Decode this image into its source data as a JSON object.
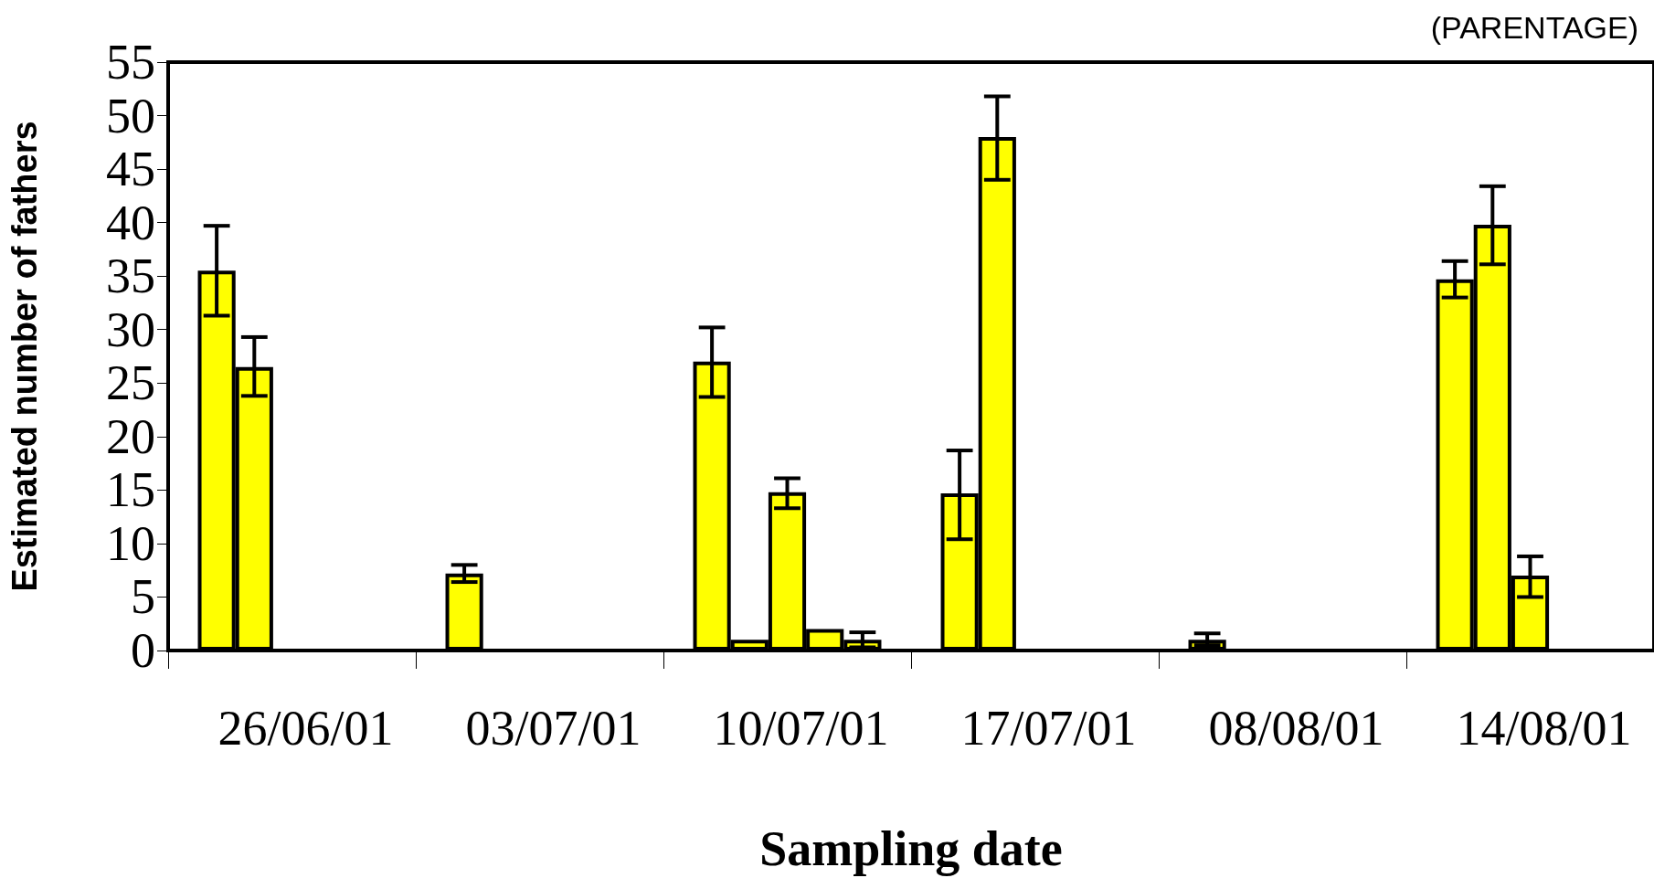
{
  "chart_data": {
    "type": "bar",
    "title": "(PARENTAGE)",
    "xlabel": "Sampling date",
    "ylabel": "Estimated number of fathers",
    "categories": [
      "26/06/01",
      "03/07/01",
      "10/07/01",
      "17/07/01",
      "08/08/01",
      "14/08/01"
    ],
    "series": [
      {
        "color": "#ffff00",
        "values": [
          35.5,
          7.2,
          27,
          14.7,
          1,
          34.7
        ],
        "errors": [
          [
            31.3,
            39.7
          ],
          [
            6.4,
            8.0
          ],
          [
            23.7,
            30.2
          ],
          [
            10.4,
            18.7
          ],
          [
            0.5,
            1.6
          ],
          [
            33.0,
            36.4
          ]
        ]
      },
      {
        "color": "#ffff00",
        "values": [
          26.5,
          null,
          1,
          48,
          null,
          39.8
        ],
        "errors": [
          [
            23.8,
            29.3
          ],
          null,
          null,
          [
            44.0,
            51.8
          ],
          null,
          [
            36.1,
            43.4
          ]
        ]
      },
      {
        "color": "#ffff00",
        "values": [
          null,
          null,
          14.8,
          null,
          null,
          7
        ],
        "errors": [
          null,
          null,
          [
            13.3,
            16.1
          ],
          null,
          null,
          [
            5.0,
            8.8
          ]
        ]
      },
      {
        "color": "#ffff00",
        "values": [
          null,
          null,
          2,
          null,
          null,
          null
        ]
      },
      {
        "color": "#ffff00",
        "values": [
          null,
          null,
          1,
          null,
          null,
          null
        ],
        "errors": [
          null,
          null,
          [
            0.3,
            1.7
          ],
          null,
          null,
          null
        ]
      }
    ],
    "ylim": [
      0,
      55
    ],
    "yticks": [
      0,
      5,
      10,
      15,
      20,
      25,
      30,
      35,
      40,
      45,
      50,
      55
    ],
    "grid": false
  }
}
